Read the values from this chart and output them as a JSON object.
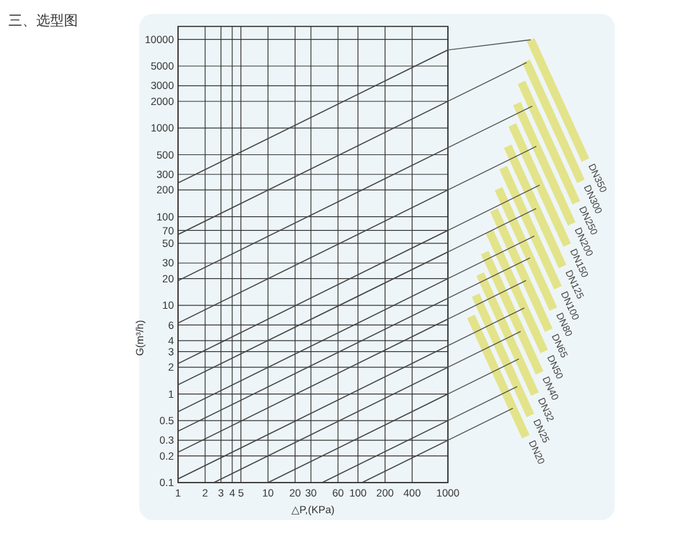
{
  "chart_data": {
    "type": "line",
    "title": "三、选型图",
    "xlabel": "△P,(KPa)",
    "ylabel": "G(m³/h)",
    "log": "xy",
    "grid": true,
    "xlim": [
      1,
      1000
    ],
    "ylim": [
      0.1,
      14000
    ],
    "xticks": [
      1,
      2,
      3,
      4,
      5,
      10,
      20,
      30,
      60,
      100,
      200,
      400,
      1000
    ],
    "yticks": [
      0.1,
      0.2,
      0.3,
      0.5,
      1,
      2,
      3,
      4,
      6,
      10,
      20,
      30,
      50,
      70,
      100,
      200,
      300,
      500,
      1000,
      2000,
      3000,
      5000,
      10000
    ],
    "series": [
      {
        "name": "DN20",
        "color": "#444444",
        "x": [
          111,
          1000
        ],
        "values": [
          0.1,
          0.3
        ]
      },
      {
        "name": "DN25",
        "color": "#444444",
        "x": [
          40,
          1000
        ],
        "values": [
          0.1,
          0.5
        ]
      },
      {
        "name": "DN32",
        "color": "#444444",
        "x": [
          10,
          1000
        ],
        "values": [
          0.1,
          1.0
        ]
      },
      {
        "name": "DN40",
        "color": "#444444",
        "x": [
          2.5,
          1000
        ],
        "values": [
          0.1,
          2
        ]
      },
      {
        "name": "DN50",
        "color": "#444444",
        "x": [
          1,
          1000
        ],
        "values": [
          0.11,
          3.5
        ]
      },
      {
        "name": "DN65",
        "color": "#444444",
        "x": [
          1,
          1000
        ],
        "values": [
          0.22,
          7
        ]
      },
      {
        "name": "DN80",
        "color": "#444444",
        "x": [
          1,
          1000
        ],
        "values": [
          0.38,
          12
        ]
      },
      {
        "name": "DN100",
        "color": "#444444",
        "x": [
          1,
          1000
        ],
        "values": [
          0.63,
          20
        ]
      },
      {
        "name": "DN125",
        "color": "#444444",
        "x": [
          1,
          1000
        ],
        "values": [
          1.27,
          40
        ]
      },
      {
        "name": "DN150",
        "color": "#444444",
        "x": [
          1,
          1000
        ],
        "values": [
          2.2,
          70
        ]
      },
      {
        "name": "DN200",
        "color": "#444444",
        "x": [
          1,
          1000
        ],
        "values": [
          6.3,
          200
        ]
      },
      {
        "name": "DN250",
        "color": "#444444",
        "x": [
          1,
          1000
        ],
        "values": [
          19,
          600
        ]
      },
      {
        "name": "DN300",
        "color": "#444444",
        "x": [
          1,
          1000
        ],
        "values": [
          63,
          2000
        ]
      },
      {
        "name": "DN350",
        "color": "#444444",
        "x": [
          1,
          1000
        ],
        "values": [
          240,
          7600
        ]
      }
    ]
  }
}
